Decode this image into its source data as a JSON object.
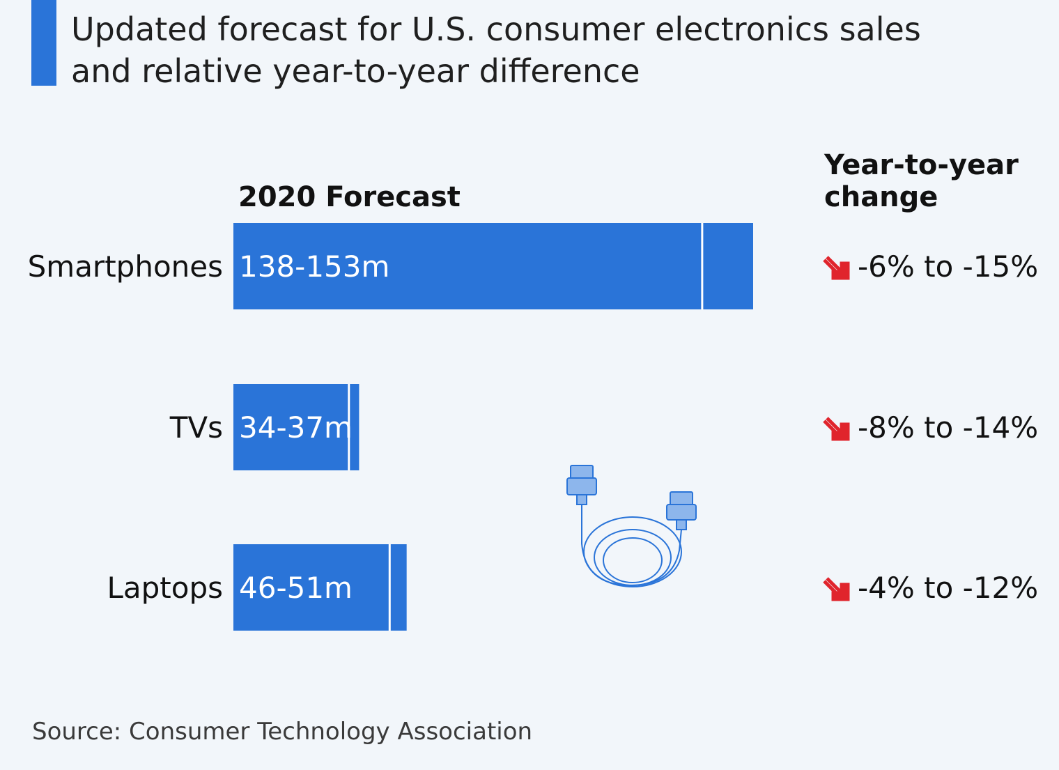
{
  "title": "Updated forecast for U.S. consumer electronics sales and relative year-to-year difference",
  "source": "Source: Consumer Technology Association",
  "colors": {
    "accent": "#2a74d8",
    "bar": "#2a74d8",
    "arrow": "#e0242c",
    "page_bg": "#f2f6fa"
  },
  "chart_data": {
    "type": "bar",
    "orientation": "horizontal",
    "title": "2020 Forecast",
    "change_header": "Year-to-year change",
    "unit": "million units",
    "categories": [
      "Smartphones",
      "TVs",
      "Laptops"
    ],
    "range_low": [
      138,
      34,
      46
    ],
    "range_high": [
      153,
      37,
      51
    ],
    "labels": [
      "138-153m",
      "34-37m",
      "46-51m"
    ],
    "yoy_change": [
      "-6% to -15%",
      "-8% to -14%",
      "-4% to -12%"
    ],
    "xlim": [
      0,
      153
    ]
  }
}
